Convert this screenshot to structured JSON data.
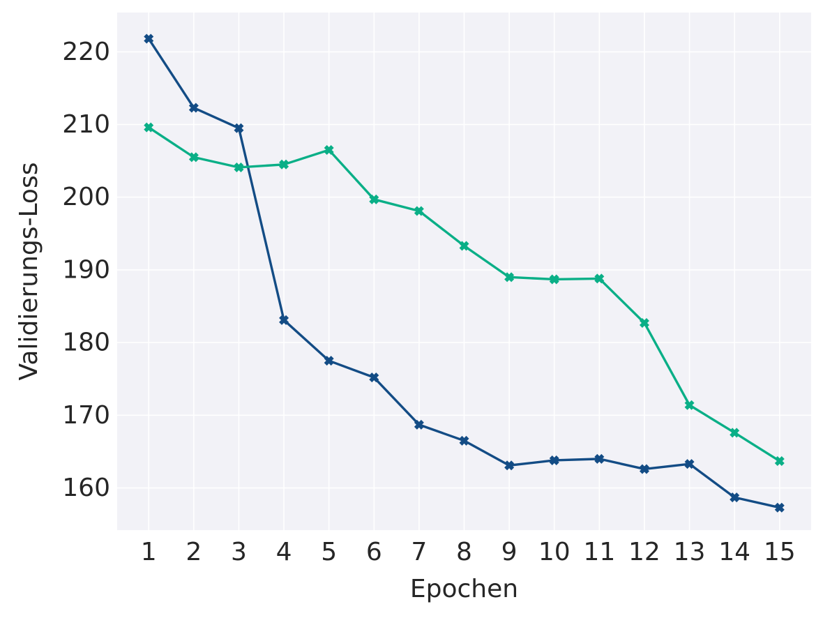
{
  "chart_data": {
    "type": "line",
    "title": "",
    "xlabel": "Epochen",
    "ylabel": "Validierungs-Loss",
    "x": [
      1,
      2,
      3,
      4,
      5,
      6,
      7,
      8,
      9,
      10,
      11,
      12,
      13,
      14,
      15
    ],
    "x_tick_labels": [
      "1",
      "2",
      "3",
      "4",
      "5",
      "6",
      "7",
      "8",
      "9",
      "10",
      "11",
      "12",
      "13",
      "14",
      "15"
    ],
    "y_ticks": [
      160,
      170,
      180,
      190,
      200,
      210,
      220
    ],
    "y_tick_labels": [
      "160",
      "170",
      "180",
      "190",
      "200",
      "210",
      "220"
    ],
    "xlim": [
      0.3,
      15.7
    ],
    "ylim": [
      154.2,
      225.4
    ],
    "grid": true,
    "legend": "none",
    "marker": "X",
    "plot_background": "#f2f2f7",
    "grid_color": "#ffffff",
    "series": [
      {
        "color": "#134c85",
        "values": [
          221.8,
          212.3,
          209.5,
          183.1,
          177.5,
          175.2,
          168.7,
          166.5,
          163.1,
          163.8,
          164.0,
          162.6,
          163.3,
          158.7,
          157.3
        ]
      },
      {
        "color": "#0aaf87",
        "values": [
          209.6,
          205.5,
          204.1,
          204.5,
          206.5,
          199.7,
          198.1,
          193.3,
          189.0,
          188.7,
          188.8,
          182.7,
          171.4,
          167.6,
          163.7
        ]
      }
    ]
  }
}
